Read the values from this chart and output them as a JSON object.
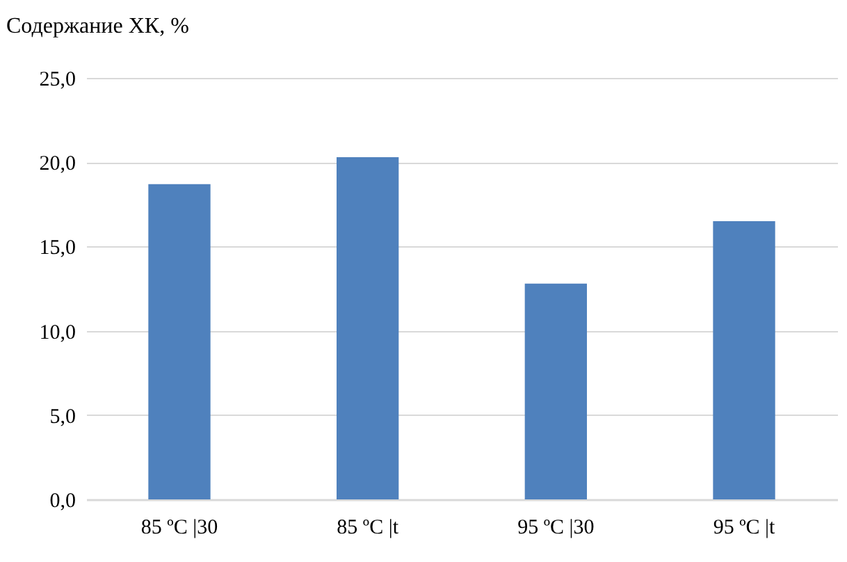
{
  "chart_data": {
    "type": "bar",
    "ylabel": "Содержание ХК, %",
    "categories": [
      "85 ºC |30",
      "85 ºC |t",
      "95 ºC |30",
      "95 ºC |t"
    ],
    "values": [
      18.7,
      20.3,
      12.8,
      16.5
    ],
    "color": "#4f81bd",
    "ylim": [
      0,
      25
    ],
    "yticks": [
      {
        "value": 0,
        "label": "0,0"
      },
      {
        "value": 5,
        "label": "5,0"
      },
      {
        "value": 10,
        "label": "10,0"
      },
      {
        "value": 15,
        "label": "15,0"
      },
      {
        "value": 20,
        "label": "20,0"
      },
      {
        "value": 25,
        "label": "25,0"
      }
    ],
    "grid": true
  }
}
